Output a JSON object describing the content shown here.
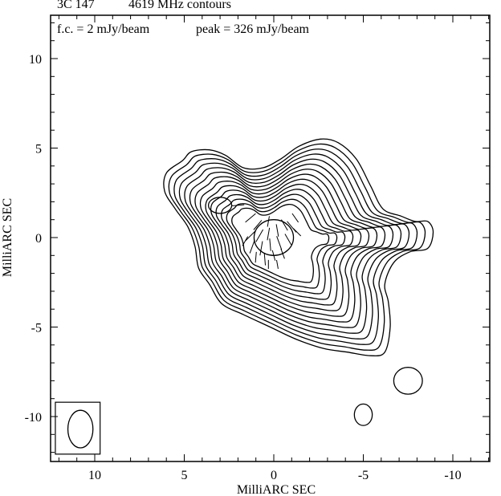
{
  "header": {
    "source": "3C 147",
    "frequency_title": "4619 MHz contours",
    "first_contour": "f.c. = 2 mJy/beam",
    "peak": "peak = 326 mJy/beam"
  },
  "chart_data": {
    "type": "contour",
    "xlabel": "MilliARC SEC",
    "ylabel": "MilliARC SEC",
    "xlim": [
      12.5,
      -12.5
    ],
    "ylim": [
      -12.5,
      12.5
    ],
    "x_ticks": [
      10,
      5,
      0,
      -5,
      -10
    ],
    "y_ticks": [
      10,
      5,
      0,
      -5,
      -10
    ],
    "x_tick_labels": [
      "10",
      "5",
      "0",
      "-5",
      "-10"
    ],
    "y_tick_labels": [
      "10",
      "5",
      "0",
      "-5",
      "-10"
    ],
    "first_contour_mJy_per_beam": 2,
    "peak_mJy_per_beam": 326,
    "main_outline": [
      [
        5.1,
        4.3
      ],
      [
        4.6,
        4.8
      ],
      [
        3.6,
        4.9
      ],
      [
        2.7,
        4.6
      ],
      [
        1.7,
        3.9
      ],
      [
        0.6,
        3.9
      ],
      [
        -0.4,
        4.4
      ],
      [
        -1.4,
        5.1
      ],
      [
        -2.6,
        5.5
      ],
      [
        -3.6,
        5.3
      ],
      [
        -4.6,
        4.4
      ],
      [
        -5.4,
        2.9
      ],
      [
        -6.1,
        1.6
      ],
      [
        -7.1,
        1.2
      ],
      [
        -7.9,
        0.9
      ],
      [
        -8.6,
        0.9
      ],
      [
        -8.9,
        0.3
      ],
      [
        -8.6,
        -0.6
      ],
      [
        -7.6,
        -0.8
      ],
      [
        -6.7,
        -1.4
      ],
      [
        -6.2,
        -2.6
      ],
      [
        -6.4,
        -3.6
      ],
      [
        -6.5,
        -5.0
      ],
      [
        -6.2,
        -6.4
      ],
      [
        -5.4,
        -6.6
      ],
      [
        -4.1,
        -6.4
      ],
      [
        -2.8,
        -6.2
      ],
      [
        -1.3,
        -5.7
      ],
      [
        0.2,
        -5.0
      ],
      [
        1.7,
        -4.3
      ],
      [
        2.9,
        -3.7
      ],
      [
        3.6,
        -2.6
      ],
      [
        4.2,
        -1.7
      ],
      [
        4.4,
        -0.5
      ],
      [
        4.8,
        0.6
      ],
      [
        5.5,
        1.6
      ],
      [
        6.1,
        2.6
      ],
      [
        6.0,
        3.6
      ]
    ],
    "inner_core_center": [
      0.2,
      -0.2
    ],
    "inner_core_scale": 0.36,
    "num_main_contours": 14,
    "secondary_peak": {
      "x": 3.0,
      "y": 1.8,
      "rx": 0.65,
      "ry": 0.45
    },
    "inner_core": {
      "x": 0.0,
      "y": 0.0,
      "rx": 1.1,
      "ry": 1.0
    },
    "islands": [
      {
        "x": -7.5,
        "y": -8.0,
        "rx": 0.8,
        "ry": 0.75
      },
      {
        "x": -5.0,
        "y": -9.9,
        "rx": 0.5,
        "ry": 0.6
      }
    ],
    "beam": {
      "x": 10.8,
      "y": -10.7,
      "rx": 0.7,
      "ry": 1.05,
      "box": {
        "x0": 12.2,
        "x1": 9.7,
        "y0": -12.1,
        "y1": -9.2
      }
    },
    "polarization_vectors": [
      [
        1.3,
        1.1,
        0.75,
        140
      ],
      [
        0.9,
        0.7,
        0.7,
        130
      ],
      [
        0.3,
        0.9,
        0.6,
        100
      ],
      [
        1.3,
        0.1,
        0.8,
        135
      ],
      [
        0.8,
        0.1,
        0.8,
        120
      ],
      [
        0.3,
        0.2,
        0.7,
        100
      ],
      [
        -0.2,
        0.4,
        0.7,
        80
      ],
      [
        -0.6,
        0.7,
        0.7,
        60
      ],
      [
        -1.0,
        0.6,
        0.8,
        50
      ],
      [
        1.2,
        -0.5,
        0.8,
        110
      ],
      [
        0.7,
        -0.6,
        0.8,
        100
      ],
      [
        0.2,
        -0.4,
        0.7,
        85
      ],
      [
        -0.3,
        -0.3,
        0.8,
        70
      ],
      [
        -0.8,
        -0.1,
        0.7,
        60
      ],
      [
        1.0,
        -1.1,
        0.6,
        95
      ],
      [
        0.5,
        -1.2,
        0.7,
        85
      ],
      [
        0.0,
        -1.0,
        0.6,
        75
      ],
      [
        -0.5,
        -0.9,
        0.6,
        70
      ],
      [
        0.3,
        -1.5,
        0.5,
        90
      ],
      [
        -0.2,
        -1.5,
        0.5,
        80
      ],
      [
        -1.3,
        0.3,
        0.6,
        45
      ],
      [
        2.0,
        1.8,
        0.7,
        175
      ],
      [
        1.6,
        -0.2,
        0.6,
        120
      ],
      [
        -1.2,
        1.1,
        0.6,
        55
      ]
    ]
  }
}
